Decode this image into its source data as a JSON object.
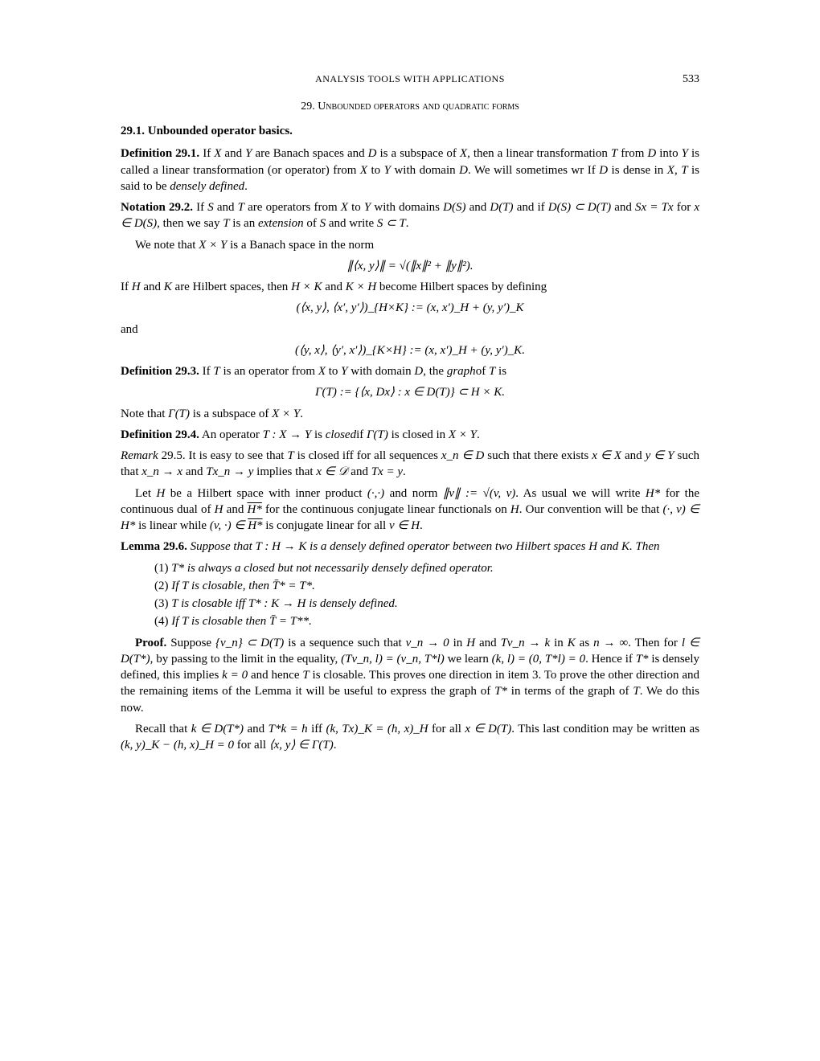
{
  "header": {
    "running_title": "ANALYSIS TOOLS WITH APPLICATIONS",
    "page_number": "533"
  },
  "section": {
    "number": "29.",
    "title": "Unbounded operators and quadratic forms"
  },
  "subsection": {
    "number": "29.1.",
    "title": "Unbounded operator basics."
  },
  "def291": {
    "label": "Definition 29.1.",
    "text_a": "If ",
    "X": "X",
    "and1": " and ",
    "Y": "Y",
    "text_b": " are Banach spaces and ",
    "D": "D",
    "text_c": " is a subspace of ",
    "text_d": ", then a linear transformation ",
    "T": "T",
    "text_e": " from ",
    "text_f": " into ",
    "text_g": " is called a linear transformation (or operator) from ",
    "text_h": " to ",
    "text_i": " with domain ",
    "text_j": ". We will sometimes wr If ",
    "text_k": " is dense in ",
    "text_l": ", ",
    "text_m": " is said to be ",
    "densely": "densely defined",
    "period": "."
  },
  "not292": {
    "label": "Notation 29.2.",
    "a": "If ",
    "S": "S",
    "and": " and ",
    "T": "T",
    "b": " are operators from ",
    "X": "X",
    "to": " to ",
    "Y": "Y",
    "c": " with domains ",
    "DS": "D(S)",
    "d": " and ",
    "DT": "D(T)",
    "e": " and if ",
    "sub": "D(S) ⊂ D(T)",
    "f": " and ",
    "eq": "Sx = Tx",
    "g": " for ",
    "xin": "x ∈ D(S)",
    "h": ", then we say ",
    "i": " is an ",
    "ext": "extension",
    "j": " of ",
    "k": " and write ",
    "ST": "S ⊂ T",
    "period": "."
  },
  "para_note": {
    "a": "We note that ",
    "XxY": "X × Y",
    "b": " is a Banach space in the norm"
  },
  "disp1": "∥⟨x, y⟩∥ = √(∥x∥² + ∥y∥²).",
  "para_HK": {
    "a": "If ",
    "H": "H",
    "and": " and ",
    "K": "K",
    "b": " are Hilbert spaces, then ",
    "HxK": "H × K",
    "c": " and ",
    "KxH": "K × H",
    "d": " become Hilbert spaces by defining"
  },
  "disp2": "(⟨x, y⟩, ⟨x′, y′⟩)_{H×K} := (x, x′)_H + (y, y′)_K",
  "and_label": "and",
  "disp3": "(⟨y, x⟩, ⟨y′, x′⟩)_{K×H} := (x, x′)_H + (y, y′)_K.",
  "def293": {
    "label": "Definition 29.3.",
    "a": "If ",
    "T": "T",
    "b": " is an operator from ",
    "X": "X",
    "to": " to ",
    "Y": "Y",
    "c": " with domain ",
    "D": "D",
    "d": ", the ",
    "graph": "graph",
    "e": "of ",
    "f": " is"
  },
  "disp4": "Γ(T) := {⟨x, Dx⟩ : x ∈ D(T)} ⊂ H × K.",
  "para_gamma": {
    "a": "Note that ",
    "g": "Γ(T)",
    "b": " is a subspace of ",
    "XxY": "X × Y",
    "c": "."
  },
  "def294": {
    "label": "Definition 29.4.",
    "a": "An operator ",
    "T": "T : X → Y",
    "b": " is ",
    "closed": "closed",
    "c": "if ",
    "g": "Γ(T)",
    "d": " is closed in ",
    "XxY": "X × Y",
    "e": "."
  },
  "rem295": {
    "label": "Remark",
    "num": " 29.5",
    "a": ". It is easy to see that ",
    "T": "T",
    "b": " is closed iff for all sequences ",
    "xn": "x_n ∈ D",
    "c": " such that there exists ",
    "xinX": "x ∈ X",
    "and": " and ",
    "yinY": "y ∈ Y",
    "d": " such that ",
    "conv1": "x_n → x",
    "e": " and ",
    "conv2": "Tx_n → y",
    "f": " implies that ",
    "xD": "x ∈ 𝒟",
    "g": " and ",
    "Txy": "Tx = y",
    "h": "."
  },
  "para_hilbert": {
    "a": "Let ",
    "H": "H",
    "b": " be a Hilbert space with inner product ",
    "ip": "(·,·)",
    "c": " and norm ",
    "norm": "∥v∥ := √(v, v)",
    "d": ". As usual we will write ",
    "Hs": "H*",
    "e": " for the continuous dual of ",
    "f": " and ",
    "Hsb": "H*",
    "g": " for the continuous conjugate linear functionals on ",
    "h": ". Our convention will be that ",
    "cv": "(·, v) ∈ H*",
    "i": " is linear while ",
    "vc": "(v, ·) ∈ ",
    "j": " is conjugate linear for all ",
    "vinH": "v ∈ H",
    "k": "."
  },
  "lem296": {
    "label": "Lemma 29.6.",
    "a": "Suppose that ",
    "T": "T : H → K",
    "b": " is a densely defined operator between two Hilbert spaces ",
    "H": "H",
    "and": " and ",
    "K": "K",
    "c": ". Then"
  },
  "list": {
    "i1n": "(1)",
    "i1": "T* is always a closed but not necessarily densely defined operator.",
    "i2n": "(2)",
    "i2": "If T is closable, then T̄* = T*.",
    "i3n": "(3)",
    "i3": "T is closable iff T* : K → H is densely defined.",
    "i4n": "(4)",
    "i4": "If T is closable then T̄ = T**."
  },
  "proof": {
    "label": "Proof.",
    "a": " Suppose ",
    "vn": "{v_n} ⊂ D(T)",
    "b": " is a sequence such that ",
    "c1": "v_n → 0",
    "c": " in ",
    "H": "H",
    "d": " and ",
    "c2": "Tv_n → k",
    "e": " in ",
    "K": "K",
    "f": " as ",
    "ninf": "n → ∞",
    "g": ". Then for ",
    "lin": "l ∈ D(T*)",
    "h": ", by passing to the limit in the equality, ",
    "eq1": "(Tv_n, l) = (v_n, T*l)",
    "i": " we learn ",
    "eq2": "(k, l) = (0, T*l) = 0",
    "j": ". Hence if ",
    "Ts": "T*",
    "k": " is densely defined, this implies ",
    "k0": "k = 0",
    "l": " and hence ",
    "T": "T",
    "m": " is closable. This proves one direction in item 3. To prove the other direction and the remaining items of the Lemma it will be useful to express the graph of ",
    "n": " in terms of the graph of ",
    "o": ". We do this now."
  },
  "proof2": {
    "a": "Recall that ",
    "kin": "k ∈ D(T*)",
    "b": " and ",
    "eq": "T*k = h",
    "c": " iff ",
    "eq2": "(k, Tx)_K = (h, x)_H",
    "d": " for all ",
    "xin": "x ∈ D(T)",
    "e": ". This last condition may be written as ",
    "eq3": "(k, y)_K − (h, x)_H = 0",
    "f": " for all ",
    "xy": "⟨x, y⟩ ∈ Γ(T)",
    "g": "."
  }
}
